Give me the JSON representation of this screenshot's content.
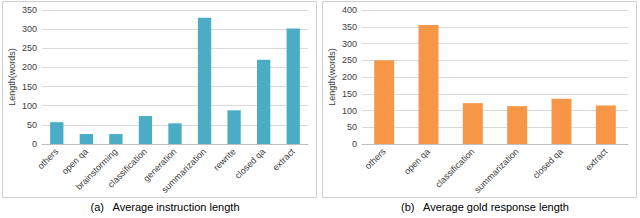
{
  "chart_data": [
    {
      "type": "bar",
      "title": "(a)   Average instruction length",
      "y_label": "Length(words)",
      "categories": [
        "others",
        "open qa",
        "brainstorming",
        "classification",
        "generation",
        "summarization",
        "rewrite",
        "closed qa",
        "extract"
      ],
      "values": [
        57,
        26,
        26,
        73,
        54,
        330,
        88,
        220,
        302
      ],
      "color": "#4bacc6",
      "ylim": [
        0,
        350
      ],
      "yticks": [
        0,
        50,
        100,
        150,
        200,
        250,
        300,
        350
      ],
      "grid": true
    },
    {
      "type": "bar",
      "title": "(b)   Average gold response length",
      "y_label": "Length(words)",
      "categories": [
        "others",
        "open qa",
        "classification",
        "summarization",
        "closed qa",
        "extract"
      ],
      "values": [
        250,
        355,
        122,
        113,
        135,
        115
      ],
      "color": "#f79646",
      "ylim": [
        0,
        400
      ],
      "yticks": [
        0,
        50,
        100,
        150,
        200,
        250,
        300,
        350,
        400
      ],
      "grid": true
    }
  ]
}
